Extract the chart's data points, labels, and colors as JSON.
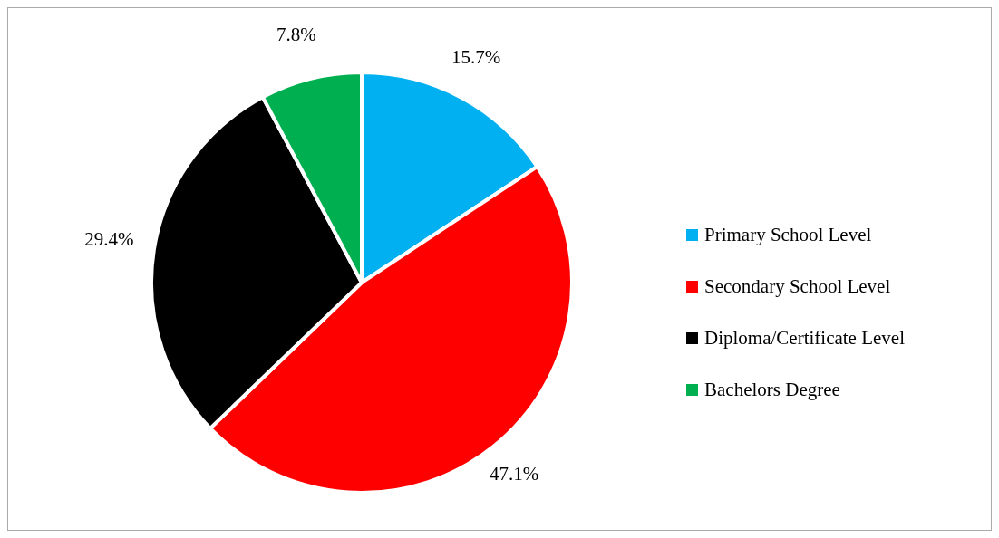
{
  "chart_data": {
    "type": "pie",
    "categories": [
      "Primary School Level",
      "Secondary School Level",
      "Diploma/Certificate Level",
      "Bachelors Degree"
    ],
    "values": [
      15.7,
      47.1,
      29.4,
      7.8
    ],
    "colors": [
      "#00b0f0",
      "#ff0000",
      "#000000",
      "#00b050"
    ],
    "value_labels": [
      "15.7%",
      "47.1%",
      "29.4%",
      "7.8%"
    ],
    "legend": "right"
  }
}
